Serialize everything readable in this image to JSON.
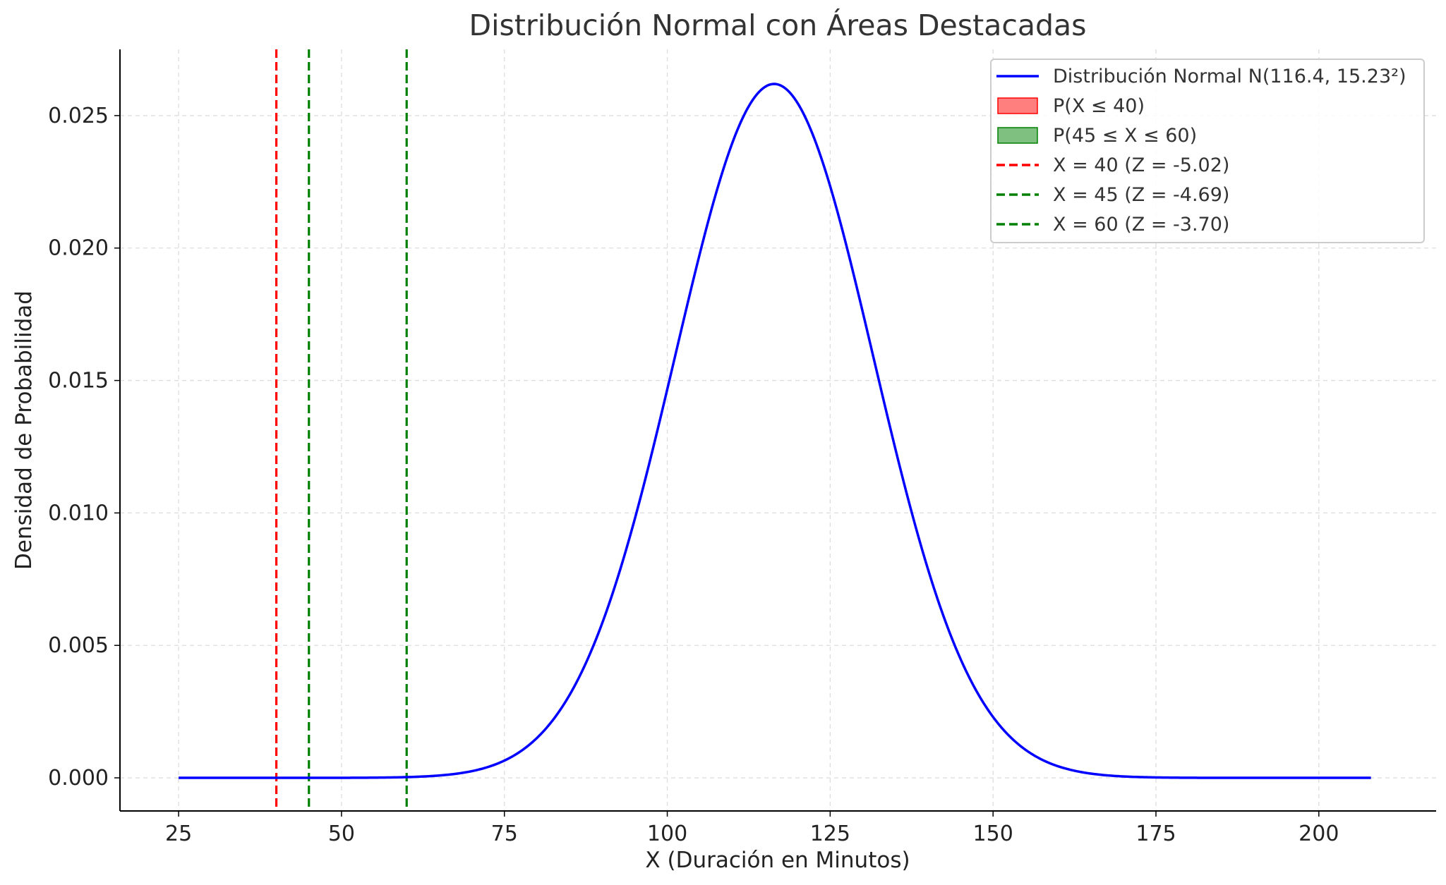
{
  "chart_data": {
    "type": "line",
    "title": "Distribución Normal con Áreas Destacadas",
    "xlabel": "X (Duración en Minutos)",
    "ylabel": "Densidad de Probabilidad",
    "xlim": [
      16,
      218
    ],
    "ylim": [
      -0.00125,
      0.0275
    ],
    "xticks": [
      25,
      50,
      75,
      100,
      125,
      150,
      175,
      200
    ],
    "xtick_labels": [
      "25",
      "50",
      "75",
      "100",
      "125",
      "150",
      "175",
      "200"
    ],
    "yticks": [
      0.0,
      0.005,
      0.01,
      0.015,
      0.02,
      0.025
    ],
    "ytick_labels": [
      "0.000",
      "0.005",
      "0.010",
      "0.015",
      "0.020",
      "0.025"
    ],
    "grid": true,
    "legend_position": "top-right",
    "distribution": {
      "mean": 116.4,
      "std": 15.23,
      "x_min": 25,
      "x_max": 208
    },
    "series": [
      {
        "name": "Distribución Normal N(116.4, 15.23²)",
        "kind": "line",
        "color": "#0000ff",
        "style": "solid"
      }
    ],
    "areas": [
      {
        "name": "P(X ≤ 40)",
        "color": "#ff0000",
        "opacity": 0.5,
        "from": 25,
        "to": 40
      },
      {
        "name": "P(45 ≤ X ≤ 60)",
        "color": "#008000",
        "opacity": 0.5,
        "from": 45,
        "to": 60
      }
    ],
    "vlines": [
      {
        "name": "X = 40 (Z = -5.02)",
        "x": 40,
        "color": "#ff0000",
        "style": "dashed"
      },
      {
        "name": "X = 45 (Z = -4.69)",
        "x": 45,
        "color": "#008000",
        "style": "dashed"
      },
      {
        "name": "X = 60 (Z = -3.70)",
        "x": 60,
        "color": "#008000",
        "style": "dashed"
      }
    ]
  }
}
